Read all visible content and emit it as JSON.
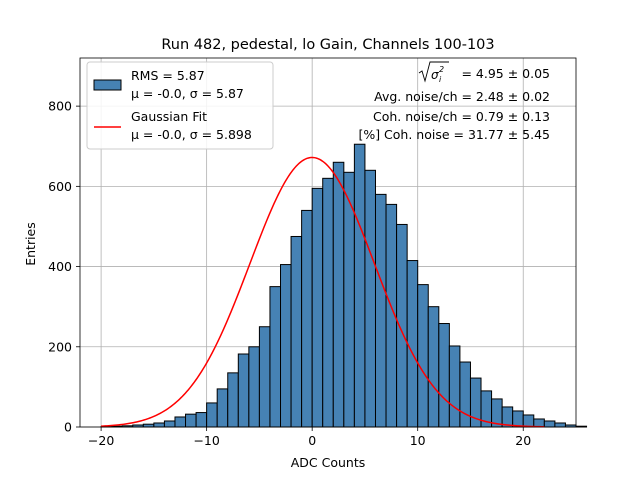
{
  "chart_data": {
    "type": "bar",
    "title": "Run 482, pedestal, lo Gain, Channels 100-103",
    "xlabel": "ADC Counts",
    "ylabel": "Entries",
    "xlim": [
      -22,
      25
    ],
    "ylim": [
      0,
      920
    ],
    "x_ticks": [
      -20,
      -10,
      0,
      10,
      20
    ],
    "y_ticks": [
      0,
      200,
      400,
      600,
      800
    ],
    "x_tick_labels": [
      "−20",
      "−10",
      "0",
      "10",
      "20"
    ],
    "y_tick_labels": [
      "0",
      "200",
      "400",
      "600",
      "800"
    ],
    "grid": true,
    "bin_width": 1,
    "bin_edges_start": -20,
    "values": [
      1,
      2,
      3,
      5,
      7,
      10,
      15,
      25,
      32,
      36,
      60,
      95,
      135,
      182,
      200,
      250,
      350,
      405,
      475,
      540,
      595,
      620,
      660,
      635,
      705,
      640,
      580,
      555,
      505,
      415,
      355,
      300,
      258,
      202,
      162,
      122,
      90,
      70,
      50,
      40,
      30,
      20,
      15,
      10,
      5,
      2
    ],
    "bar_color": "#4682b4",
    "fit": {
      "type": "gaussian",
      "mu": 0.0,
      "sigma": 5.898,
      "amplitude": 672,
      "x_range": [
        -20,
        22
      ],
      "color": "#ff0000"
    },
    "legend": {
      "placement": "top-left",
      "entries": [
        {
          "kind": "patch",
          "line1": "RMS = 5.87",
          "line2": "μ = -0.0, σ = 5.87",
          "color": "#4682b4"
        },
        {
          "kind": "line",
          "line1": "Gaussian Fit",
          "line2": "μ = -0.0, σ = 5.898",
          "color": "#ff0000"
        }
      ]
    },
    "annotations": {
      "placement": "top-right",
      "sigma_value": "= 4.95 ± 0.05",
      "lines": [
        "Avg. noise/ch = 2.48 ± 0.02",
        "Coh. noise/ch = 0.79 ± 0.13",
        "[%] Coh. noise = 31.77 ± 5.45"
      ]
    }
  }
}
